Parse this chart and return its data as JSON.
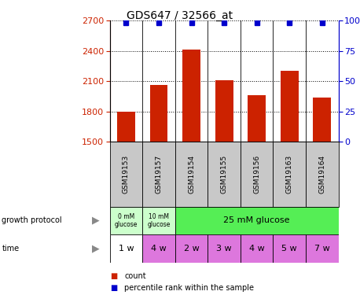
{
  "title": "GDS647 / 32566_at",
  "samples": [
    "GSM19153",
    "GSM19157",
    "GSM19154",
    "GSM19155",
    "GSM19156",
    "GSM19163",
    "GSM19164"
  ],
  "counts": [
    1795,
    2065,
    2415,
    2110,
    1960,
    2200,
    1940
  ],
  "percentile": [
    98,
    98,
    98,
    98,
    98,
    98,
    98
  ],
  "ylim_left": [
    1500,
    2700
  ],
  "ylim_right": [
    0,
    100
  ],
  "yticks_left": [
    1500,
    1800,
    2100,
    2400,
    2700
  ],
  "yticks_right": [
    0,
    25,
    50,
    75,
    100
  ],
  "bar_color": "#cc2200",
  "dot_color": "#0000cc",
  "growth_protocol_labels": [
    "0 mM\nglucose",
    "10 mM\nglucose",
    "25 mM glucose"
  ],
  "growth_protocol_colors_0": "#ccffcc",
  "growth_protocol_colors_1": "#ccffcc",
  "growth_protocol_colors_2": "#55ee55",
  "time_labels": [
    "1 w",
    "4 w",
    "2 w",
    "3 w",
    "4 w",
    "5 w",
    "7 w"
  ],
  "time_colors": [
    "#ffffff",
    "#dd77dd",
    "#dd77dd",
    "#dd77dd",
    "#dd77dd",
    "#dd77dd",
    "#dd77dd"
  ],
  "legend_count_color": "#cc2200",
  "legend_pct_color": "#0000cc"
}
